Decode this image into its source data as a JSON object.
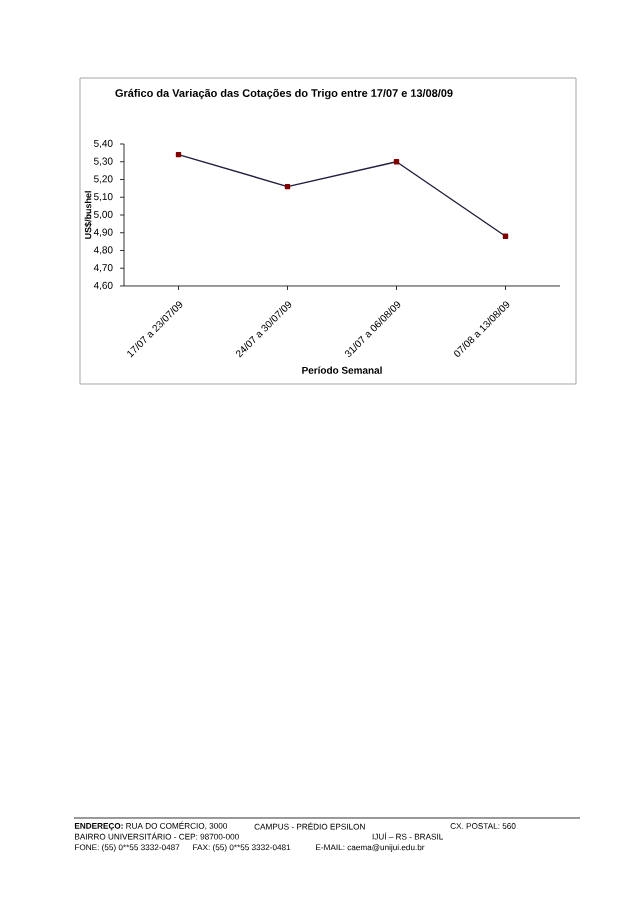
{
  "chart_data": {
    "type": "line",
    "title": "Gráfico da Variação das Cotações do Trigo entre 17/07 e 13/08/09",
    "xlabel": "Período Semanal",
    "ylabel": "US$/bushel",
    "categories": [
      "17/07 a 23/07/09",
      "24/07 a 30/07/09",
      "31/07 a 06/08/09",
      "07/08 a 13/08/09"
    ],
    "series": [
      {
        "color": "#1f1f3f",
        "values": [
          5.34,
          5.16,
          5.3,
          4.88
        ]
      }
    ],
    "marker": "square",
    "line_style": "solid",
    "grid": false,
    "ylim": [
      4.6,
      5.4
    ],
    "yticks": [
      {
        "value": 4.6,
        "label": "4,60"
      },
      {
        "value": 4.7,
        "label": "4,70"
      },
      {
        "value": 4.8,
        "label": "4,80"
      },
      {
        "value": 4.9,
        "label": "4,90"
      },
      {
        "value": 5.0,
        "label": "5,00"
      },
      {
        "value": 5.1,
        "label": "5,10"
      },
      {
        "value": 5.2,
        "label": "5,20"
      },
      {
        "value": 5.3,
        "label": "5,30"
      },
      {
        "value": 5.4,
        "label": "5,40"
      }
    ],
    "annotations": [
      "**ENDEREÇO:** RUA DO COMÉRCIO, 3000",
      "CAMPUS - PRÉDIO EPSILON",
      "CX. POSTAL: 560",
      "BAIRRO UNIVERSITÁRIO - CEP: 98700-000",
      "IJUÍ – RS - BRASIL",
      "FONE: (55) 0**55 3332-0487",
      "FAX: (55) 0**55 3332-0481",
      "E-MAIL: caema@unijui.edu.br"
    ]
  }
}
